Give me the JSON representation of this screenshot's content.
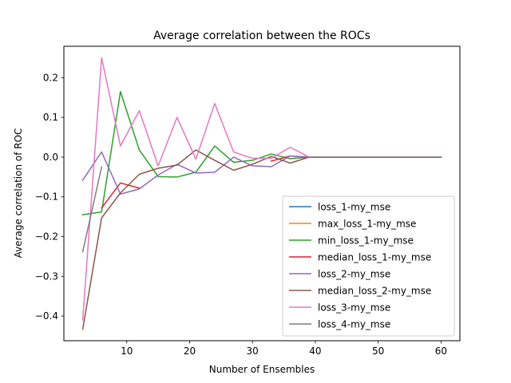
{
  "chart_data": {
    "type": "line",
    "title": "Average correlation between the ROCs",
    "xlabel": "Number of Ensembles",
    "ylabel": "Average correlation of ROC",
    "xlim": [
      0,
      63
    ],
    "ylim": [
      -0.462,
      0.279
    ],
    "xticks": [
      10,
      20,
      30,
      40,
      50,
      60
    ],
    "yticks": [
      -0.4,
      -0.3,
      -0.2,
      -0.1,
      0.0,
      0.1,
      0.2
    ],
    "grid": false,
    "legend_position": "lower right",
    "x": [
      3,
      6,
      9,
      12,
      15,
      18,
      21,
      24,
      27,
      30,
      33,
      36,
      39,
      42,
      45,
      48,
      51,
      54,
      57,
      60
    ],
    "series": [
      {
        "name": "loss_1-my_mse",
        "color": "#1f77b4",
        "values": [
          null,
          null,
          null,
          null,
          null,
          null,
          null,
          null,
          null,
          null,
          null,
          null,
          0,
          0,
          0,
          0,
          0,
          0,
          0,
          0
        ]
      },
      {
        "name": "max_loss_1-my_mse",
        "color": "#ff7f0e",
        "values": [
          null,
          null,
          null,
          null,
          null,
          null,
          null,
          null,
          null,
          null,
          null,
          null,
          0,
          0,
          0,
          0,
          0,
          0,
          0,
          0
        ]
      },
      {
        "name": "min_loss_1-my_mse",
        "color": "#2ca02c",
        "values": [
          -0.145,
          -0.138,
          0.165,
          0.018,
          -0.049,
          -0.05,
          -0.038,
          0.028,
          -0.013,
          -0.008,
          0.008,
          -0.004,
          0,
          0,
          0,
          0,
          0,
          0,
          0,
          0
        ]
      },
      {
        "name": "median_loss_1-my_mse",
        "color": "#d62728",
        "values": [
          null,
          -0.128,
          -0.065,
          -0.078,
          null,
          null,
          null,
          null,
          null,
          null,
          -0.01,
          0.003,
          0,
          0,
          0,
          0,
          0,
          0,
          0,
          0
        ]
      },
      {
        "name": "loss_2-my_mse",
        "color": "#9467bd",
        "values": [
          -0.058,
          0.013,
          -0.093,
          -0.08,
          -0.045,
          -0.018,
          -0.04,
          -0.038,
          0.0,
          -0.022,
          -0.024,
          0.003,
          0,
          0,
          0,
          0,
          0,
          0,
          0,
          0
        ]
      },
      {
        "name": "median_loss_2-my_mse",
        "color": "#8c564b",
        "values": [
          -0.433,
          -0.153,
          -0.09,
          -0.043,
          -0.028,
          -0.02,
          0.018,
          -0.008,
          -0.033,
          -0.018,
          0.002,
          -0.015,
          0,
          0,
          0,
          0,
          0,
          0,
          0,
          0
        ]
      },
      {
        "name": "loss_3-my_mse",
        "color": "#e377c2",
        "values": [
          -0.41,
          0.25,
          0.028,
          0.117,
          -0.022,
          0.1,
          -0.005,
          0.135,
          0.013,
          -0.003,
          -0.003,
          0.025,
          0,
          0,
          0,
          0,
          0,
          0,
          0,
          0
        ]
      },
      {
        "name": "loss_4-my_mse",
        "color": "#7f7f7f",
        "values": [
          -0.238,
          -0.025,
          null,
          null,
          null,
          null,
          null,
          null,
          null,
          null,
          null,
          null,
          0,
          0,
          0,
          0,
          0,
          0,
          0,
          0
        ]
      }
    ]
  }
}
